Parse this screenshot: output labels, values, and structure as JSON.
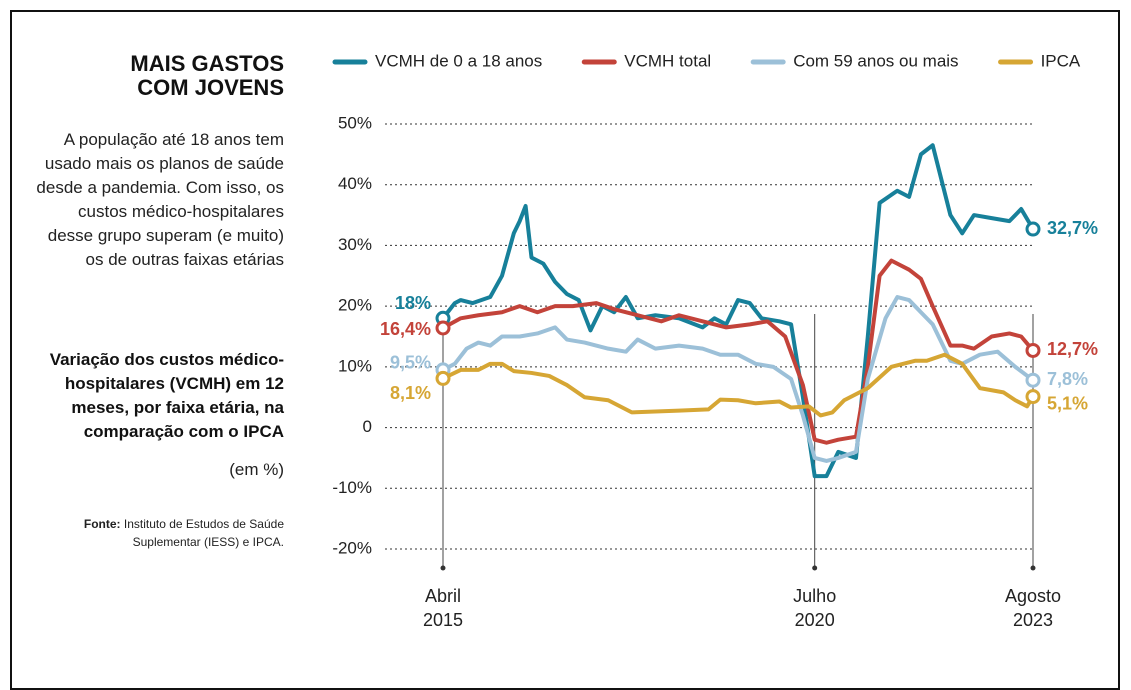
{
  "title": "MAIS GASTOS\nCOM JOVENS",
  "description": "A população até 18 anos tem usado mais os planos de saúde desde a pandemia. Com isso, os custos médico-hospitalares desse grupo superam (e muito) os de outras faixas etárias",
  "subtitle": "Variação dos custos médico-hospitalares (VCMH) em 12 meses, por faixa etária, na comparação com o IPCA",
  "unit_note": "(em %)",
  "source_label": "Fonte:",
  "source": "Instituto de Estudos de Saúde Suplementar (IESS) e IPCA.",
  "chart_data": {
    "type": "line",
    "xlim": [
      "2015-04",
      "2023-08"
    ],
    "xticks": [
      {
        "value": "2015-04",
        "label": "Abril\n2015"
      },
      {
        "value": "2020-07",
        "label": "Julho\n2020"
      },
      {
        "value": "2023-08",
        "label": "Agosto\n2023"
      }
    ],
    "ylim": [
      -20,
      50
    ],
    "yticks": [
      {
        "value": 50,
        "label": "50%"
      },
      {
        "value": 40,
        "label": "40%"
      },
      {
        "value": 30,
        "label": "30%"
      },
      {
        "value": 20,
        "label": "20%"
      },
      {
        "value": 10,
        "label": "10%"
      },
      0,
      {
        "value": -10,
        "label": "-10%"
      },
      {
        "value": -20,
        "label": "-20%"
      }
    ],
    "grid": true,
    "series": [
      {
        "name": "VCMH de 0 a 18 anos",
        "color": "#17809a",
        "x": [
          "2015-04",
          "2015-06",
          "2015-07",
          "2015-09",
          "2015-12",
          "2016-02",
          "2016-04",
          "2016-05",
          "2016-06",
          "2016-07",
          "2016-09",
          "2016-11",
          "2017-01",
          "2017-03",
          "2017-05",
          "2017-07",
          "2017-09",
          "2017-11",
          "2018-01",
          "2018-04",
          "2018-08",
          "2018-12",
          "2019-02",
          "2019-04",
          "2019-06",
          "2019-08",
          "2019-10",
          "2020-01",
          "2020-03",
          "2020-05",
          "2020-07",
          "2020-09",
          "2020-11",
          "2021-02",
          "2021-04",
          "2021-06",
          "2021-09",
          "2021-11",
          "2022-01",
          "2022-03",
          "2022-06",
          "2022-08",
          "2022-10",
          "2023-01",
          "2023-04",
          "2023-06",
          "2023-08"
        ],
        "values": [
          18,
          20.5,
          21,
          20.5,
          21.5,
          25,
          32,
          34,
          36.5,
          28,
          27,
          24,
          22,
          21,
          16,
          20,
          19,
          21.5,
          18,
          18.5,
          18,
          16.5,
          18,
          17,
          21,
          20.5,
          18,
          17.5,
          17,
          5,
          -8,
          -8,
          -4,
          -5,
          15,
          37,
          39,
          38,
          45,
          46.5,
          35,
          32,
          35,
          34.5,
          34,
          36,
          32.7
        ],
        "value_labels": [
          "18%",
          null,
          null,
          null,
          null,
          null,
          null,
          null,
          null,
          null,
          null,
          null,
          null,
          null,
          null,
          null,
          null,
          null,
          null,
          null,
          null,
          null,
          null,
          null,
          null,
          null,
          null,
          null,
          null,
          null,
          null,
          null,
          null,
          null,
          null,
          null,
          null,
          null,
          null,
          null,
          null,
          null,
          null,
          null,
          null,
          null,
          "32,7%"
        ]
      },
      {
        "name": "VCMH total",
        "color": "#c3433a",
        "x": [
          "2015-04",
          "2015-07",
          "2015-10",
          "2016-02",
          "2016-05",
          "2016-08",
          "2016-11",
          "2017-02",
          "2017-06",
          "2017-09",
          "2018-01",
          "2018-05",
          "2018-08",
          "2018-12",
          "2019-04",
          "2019-08",
          "2019-11",
          "2020-02",
          "2020-05",
          "2020-07",
          "2020-09",
          "2020-11",
          "2021-02",
          "2021-04",
          "2021-06",
          "2021-08",
          "2021-11",
          "2022-01",
          "2022-03",
          "2022-06",
          "2022-08",
          "2022-10",
          "2023-01",
          "2023-04",
          "2023-06",
          "2023-08"
        ],
        "values": [
          16.4,
          18,
          18.5,
          19,
          20,
          19,
          20,
          20,
          20.5,
          19.5,
          18.5,
          17.5,
          18.5,
          17.5,
          16.5,
          17,
          17.5,
          15,
          7,
          -2,
          -2.5,
          -2,
          -1.5,
          10,
          25,
          27.5,
          26,
          24.5,
          20,
          13.5,
          13.5,
          13,
          15,
          15.5,
          15,
          12.7
        ],
        "value_labels": [
          "16,4%",
          null,
          null,
          null,
          null,
          null,
          null,
          null,
          null,
          null,
          null,
          null,
          null,
          null,
          null,
          null,
          null,
          null,
          null,
          null,
          null,
          null,
          null,
          null,
          null,
          null,
          null,
          null,
          null,
          null,
          null,
          null,
          null,
          null,
          null,
          "12,7%"
        ]
      },
      {
        "name": "Com 59 anos ou mais",
        "color": "#9cc0d8",
        "x": [
          "2015-04",
          "2015-06",
          "2015-08",
          "2015-10",
          "2015-12",
          "2016-02",
          "2016-05",
          "2016-08",
          "2016-11",
          "2017-01",
          "2017-04",
          "2017-08",
          "2017-11",
          "2018-01",
          "2018-04",
          "2018-08",
          "2018-12",
          "2019-03",
          "2019-06",
          "2019-09",
          "2019-12",
          "2020-03",
          "2020-05",
          "2020-07",
          "2020-09",
          "2020-11",
          "2021-02",
          "2021-04",
          "2021-07",
          "2021-09",
          "2021-11",
          "2022-01",
          "2022-03",
          "2022-06",
          "2022-08",
          "2022-11",
          "2023-02",
          "2023-05",
          "2023-08"
        ],
        "values": [
          9.5,
          10.5,
          13,
          14,
          13.5,
          15,
          15,
          15.5,
          16.5,
          14.5,
          14,
          13,
          12.5,
          14.5,
          13,
          13.5,
          13,
          12,
          12,
          10.5,
          10,
          8,
          2,
          -5,
          -5.5,
          -5,
          -4,
          8,
          18,
          21.5,
          21,
          19,
          17,
          11,
          10.5,
          12,
          12.5,
          10,
          7.8
        ],
        "value_labels": [
          "9,5%",
          null,
          null,
          null,
          null,
          null,
          null,
          null,
          null,
          null,
          null,
          null,
          null,
          null,
          null,
          null,
          null,
          null,
          null,
          null,
          null,
          null,
          null,
          null,
          null,
          null,
          null,
          null,
          null,
          null,
          null,
          null,
          null,
          null,
          null,
          null,
          null,
          null,
          "7,8%"
        ]
      },
      {
        "name": "IPCA",
        "color": "#d6a634",
        "x": [
          "2015-04",
          "2015-07",
          "2015-10",
          "2015-12",
          "2016-02",
          "2016-04",
          "2016-07",
          "2016-10",
          "2017-01",
          "2017-04",
          "2017-08",
          "2017-12",
          "2018-08",
          "2019-01",
          "2019-03",
          "2019-06",
          "2019-09",
          "2020-01",
          "2020-03",
          "2020-06",
          "2020-08",
          "2020-10",
          "2020-12",
          "2021-04",
          "2021-08",
          "2021-12",
          "2022-02",
          "2022-05",
          "2022-08",
          "2022-11",
          "2023-03",
          "2023-05",
          "2023-07",
          "2023-08"
        ],
        "values": [
          8.1,
          9.5,
          9.5,
          10.5,
          10.5,
          9.3,
          9,
          8.5,
          7,
          5,
          4.5,
          2.5,
          2.8,
          3,
          4.6,
          4.5,
          4,
          4.3,
          3.3,
          3.5,
          2,
          2.5,
          4.5,
          6.5,
          10,
          11,
          11,
          12,
          10.5,
          6.5,
          5.8,
          4.5,
          3.5,
          5.1
        ],
        "value_labels": [
          "8,1%",
          null,
          null,
          null,
          null,
          null,
          null,
          null,
          null,
          null,
          null,
          null,
          null,
          null,
          null,
          null,
          null,
          null,
          null,
          null,
          null,
          null,
          null,
          null,
          null,
          null,
          null,
          null,
          null,
          null,
          null,
          null,
          null,
          "5,1%"
        ]
      }
    ]
  }
}
